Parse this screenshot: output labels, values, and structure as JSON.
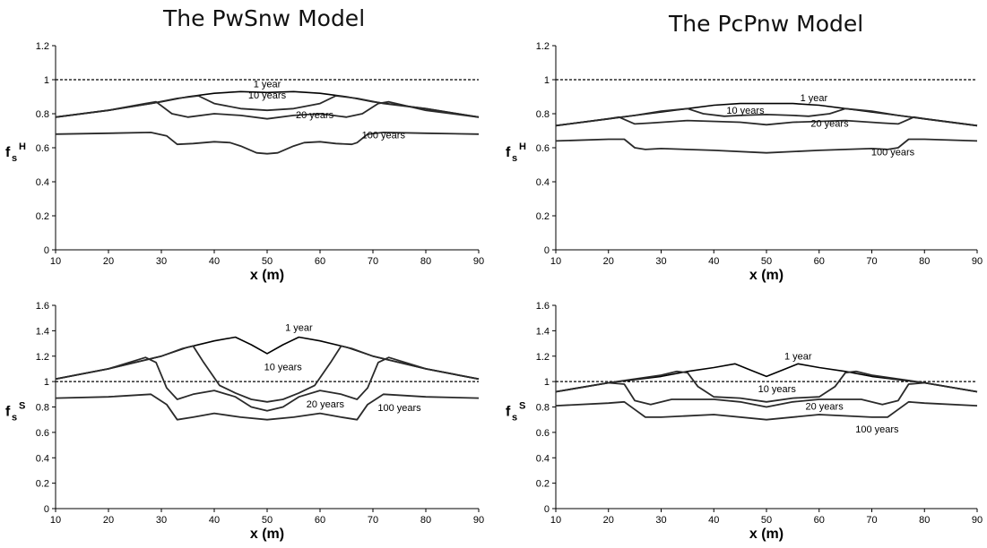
{
  "figure": {
    "left_title": "The PwSnw Model",
    "right_title": "The PcPnw Model"
  },
  "chart_data": [
    {
      "type": "line",
      "panel": "top-left",
      "xlabel": "x (m)",
      "ylabel": "f",
      "ylabel_sub": "s",
      "ylabel_sup": "H",
      "xlim": [
        10,
        90
      ],
      "ylim": [
        0,
        1.2
      ],
      "xticks": [
        "10",
        "20",
        "30",
        "40",
        "50",
        "60",
        "70",
        "80",
        "90"
      ],
      "yticks": [
        "0",
        "0.2",
        "0.4",
        "0.6",
        "0.8",
        "1",
        "1.2"
      ],
      "reference_line": 1.0,
      "series": [
        {
          "name": "1 year",
          "label_at": [
            50,
            0.955
          ],
          "x": [
            10,
            20,
            30,
            35,
            40,
            45,
            50,
            55,
            60,
            65,
            70,
            80,
            90
          ],
          "y": [
            0.78,
            0.82,
            0.87,
            0.9,
            0.92,
            0.93,
            0.925,
            0.93,
            0.92,
            0.9,
            0.87,
            0.83,
            0.78
          ]
        },
        {
          "name": "10 years",
          "label_at": [
            50,
            0.89
          ],
          "x": [
            10,
            20,
            28,
            33,
            37,
            40,
            45,
            50,
            55,
            60,
            63,
            67,
            72,
            80,
            90
          ],
          "y": [
            0.78,
            0.82,
            0.86,
            0.89,
            0.905,
            0.86,
            0.83,
            0.82,
            0.83,
            0.86,
            0.905,
            0.89,
            0.86,
            0.83,
            0.78
          ]
        },
        {
          "name": "20 years",
          "label_at": [
            59,
            0.775
          ],
          "x": [
            10,
            20,
            27,
            29,
            32,
            35,
            40,
            45,
            50,
            55,
            60,
            65,
            68,
            71,
            73,
            80,
            90
          ],
          "y": [
            0.78,
            0.82,
            0.86,
            0.87,
            0.8,
            0.78,
            0.8,
            0.79,
            0.77,
            0.79,
            0.8,
            0.78,
            0.8,
            0.86,
            0.87,
            0.82,
            0.78
          ]
        },
        {
          "name": "100 years",
          "label_at": [
            72,
            0.655
          ],
          "x": [
            10,
            20,
            28,
            31,
            33,
            36,
            40,
            43,
            45,
            48,
            50,
            52,
            55,
            57,
            60,
            63,
            66,
            67,
            69,
            72,
            80,
            90
          ],
          "y": [
            0.68,
            0.685,
            0.69,
            0.67,
            0.62,
            0.625,
            0.635,
            0.63,
            0.61,
            0.57,
            0.565,
            0.57,
            0.61,
            0.63,
            0.635,
            0.625,
            0.62,
            0.63,
            0.68,
            0.69,
            0.685,
            0.68
          ]
        }
      ]
    },
    {
      "type": "line",
      "panel": "top-right",
      "xlabel": "x (m)",
      "ylabel": "f",
      "ylabel_sub": "s",
      "ylabel_sup": "H",
      "xlim": [
        10,
        90
      ],
      "ylim": [
        0,
        1.2
      ],
      "xticks": [
        "10",
        "20",
        "30",
        "40",
        "50",
        "60",
        "70",
        "80",
        "90"
      ],
      "yticks": [
        "0",
        "0.2",
        "0.4",
        "0.6",
        "0.8",
        "1",
        "1.2"
      ],
      "reference_line": 1.0,
      "series": [
        {
          "name": "1 year",
          "label_at": [
            59,
            0.875
          ],
          "x": [
            10,
            20,
            30,
            40,
            45,
            50,
            55,
            60,
            70,
            80,
            90
          ],
          "y": [
            0.73,
            0.77,
            0.81,
            0.85,
            0.86,
            0.86,
            0.86,
            0.85,
            0.81,
            0.77,
            0.73
          ]
        },
        {
          "name": "10 years",
          "label_at": [
            46,
            0.8
          ],
          "x": [
            10,
            20,
            25,
            30,
            35,
            38,
            42,
            45,
            50,
            55,
            58,
            62,
            65,
            70,
            75,
            80,
            90
          ],
          "y": [
            0.73,
            0.77,
            0.79,
            0.815,
            0.83,
            0.8,
            0.785,
            0.79,
            0.795,
            0.79,
            0.785,
            0.8,
            0.83,
            0.815,
            0.79,
            0.77,
            0.73
          ]
        },
        {
          "name": "20 years",
          "label_at": [
            62,
            0.725
          ],
          "x": [
            10,
            20,
            22,
            25,
            28,
            35,
            45,
            50,
            55,
            65,
            72,
            75,
            78,
            80,
            90
          ],
          "y": [
            0.73,
            0.77,
            0.78,
            0.74,
            0.745,
            0.76,
            0.75,
            0.735,
            0.75,
            0.76,
            0.745,
            0.74,
            0.78,
            0.77,
            0.73
          ]
        },
        {
          "name": "100 years",
          "label_at": [
            74,
            0.555
          ],
          "x": [
            10,
            20,
            23,
            25,
            27,
            30,
            40,
            50,
            60,
            70,
            73,
            75,
            77,
            80,
            90
          ],
          "y": [
            0.64,
            0.65,
            0.65,
            0.6,
            0.59,
            0.595,
            0.585,
            0.57,
            0.585,
            0.595,
            0.59,
            0.6,
            0.65,
            0.65,
            0.64
          ]
        }
      ]
    },
    {
      "type": "line",
      "panel": "bottom-left",
      "xlabel": "x (m)",
      "ylabel": "f",
      "ylabel_sub": "s",
      "ylabel_sup": "S",
      "xlim": [
        10,
        90
      ],
      "ylim": [
        0,
        1.6
      ],
      "xticks": [
        "10",
        "20",
        "30",
        "40",
        "50",
        "60",
        "70",
        "80",
        "90"
      ],
      "yticks": [
        "0",
        "0.2",
        "0.4",
        "0.6",
        "0.8",
        "1",
        "1.2",
        "1.4",
        "1.6"
      ],
      "reference_line": 1.0,
      "series": [
        {
          "name": "1 year",
          "label_at": [
            56,
            1.4
          ],
          "x": [
            10,
            20,
            30,
            35,
            40,
            44,
            47,
            50,
            53,
            56,
            60,
            65,
            70,
            80,
            90
          ],
          "y": [
            1.02,
            1.1,
            1.2,
            1.27,
            1.32,
            1.35,
            1.29,
            1.22,
            1.29,
            1.35,
            1.32,
            1.27,
            1.2,
            1.1,
            1.02
          ]
        },
        {
          "name": "10 years",
          "label_at": [
            53,
            1.09
          ],
          "x": [
            10,
            20,
            30,
            34,
            36,
            38,
            41,
            44,
            47,
            50,
            53,
            56,
            59,
            62,
            64,
            66,
            70,
            80,
            90
          ],
          "y": [
            1.02,
            1.1,
            1.2,
            1.26,
            1.28,
            1.15,
            0.97,
            0.91,
            0.86,
            0.84,
            0.86,
            0.91,
            0.97,
            1.15,
            1.28,
            1.26,
            1.2,
            1.1,
            1.02
          ]
        },
        {
          "name": "20 years",
          "label_at": [
            61,
            0.795
          ],
          "x": [
            10,
            20,
            27,
            29,
            31,
            33,
            36,
            40,
            44,
            47,
            50,
            53,
            56,
            60,
            64,
            67,
            69,
            71,
            73,
            80,
            90
          ],
          "y": [
            1.02,
            1.1,
            1.19,
            1.15,
            0.95,
            0.86,
            0.9,
            0.93,
            0.88,
            0.8,
            0.77,
            0.8,
            0.88,
            0.93,
            0.9,
            0.86,
            0.95,
            1.15,
            1.19,
            1.1,
            1.02
          ]
        },
        {
          "name": "100 years",
          "label_at": [
            75,
            0.77
          ],
          "x": [
            10,
            20,
            28,
            31,
            33,
            36,
            40,
            45,
            50,
            55,
            60,
            64,
            67,
            69,
            72,
            80,
            90
          ],
          "y": [
            0.87,
            0.88,
            0.9,
            0.82,
            0.7,
            0.72,
            0.75,
            0.72,
            0.7,
            0.72,
            0.75,
            0.72,
            0.7,
            0.82,
            0.9,
            0.88,
            0.87
          ]
        }
      ]
    },
    {
      "type": "line",
      "panel": "bottom-right",
      "xlabel": "x (m)",
      "ylabel": "f",
      "ylabel_sub": "s",
      "ylabel_sup": "S",
      "xlim": [
        10,
        90
      ],
      "ylim": [
        0,
        1.6
      ],
      "xticks": [
        "10",
        "20",
        "30",
        "40",
        "50",
        "60",
        "70",
        "80",
        "90"
      ],
      "yticks": [
        "0",
        "0.2",
        "0.4",
        "0.6",
        "0.8",
        "1",
        "1.2",
        "1.4",
        "1.6"
      ],
      "reference_line": 1.0,
      "series": [
        {
          "name": "1 year",
          "label_at": [
            56,
            1.175
          ],
          "x": [
            10,
            20,
            30,
            35,
            40,
            44,
            47,
            50,
            53,
            56,
            60,
            65,
            70,
            80,
            90
          ],
          "y": [
            0.92,
            0.99,
            1.04,
            1.08,
            1.11,
            1.14,
            1.09,
            1.04,
            1.09,
            1.14,
            1.11,
            1.08,
            1.04,
            0.99,
            0.92
          ]
        },
        {
          "name": "10 years",
          "label_at": [
            52,
            0.915
          ],
          "x": [
            10,
            20,
            30,
            33,
            35,
            37,
            40,
            45,
            50,
            55,
            60,
            63,
            65,
            67,
            70,
            80,
            90
          ],
          "y": [
            0.92,
            0.99,
            1.05,
            1.08,
            1.07,
            0.96,
            0.88,
            0.87,
            0.84,
            0.87,
            0.88,
            0.96,
            1.07,
            1.08,
            1.05,
            0.99,
            0.92
          ]
        },
        {
          "name": "20 years",
          "label_at": [
            61,
            0.78
          ],
          "x": [
            10,
            20,
            23,
            25,
            28,
            32,
            40,
            45,
            50,
            55,
            60,
            68,
            72,
            75,
            77,
            80,
            90
          ],
          "y": [
            0.92,
            0.99,
            0.98,
            0.85,
            0.82,
            0.86,
            0.86,
            0.84,
            0.8,
            0.84,
            0.86,
            0.86,
            0.82,
            0.85,
            0.98,
            0.99,
            0.92
          ]
        },
        {
          "name": "100 years",
          "label_at": [
            71,
            0.6
          ],
          "x": [
            10,
            20,
            23,
            25,
            27,
            30,
            40,
            50,
            60,
            70,
            73,
            75,
            77,
            80,
            90
          ],
          "y": [
            0.81,
            0.83,
            0.84,
            0.78,
            0.72,
            0.72,
            0.74,
            0.7,
            0.74,
            0.72,
            0.72,
            0.78,
            0.84,
            0.83,
            0.81
          ]
        }
      ]
    }
  ]
}
